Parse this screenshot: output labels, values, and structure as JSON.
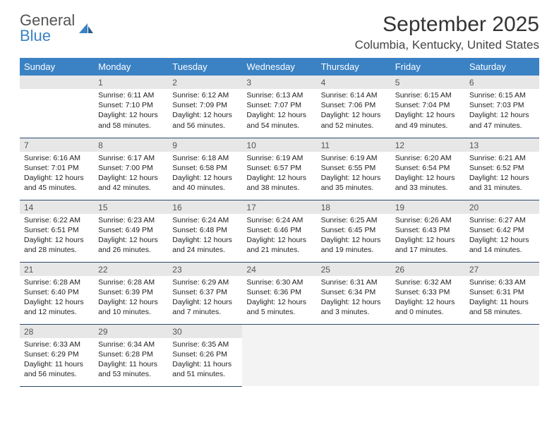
{
  "brand": {
    "word1": "General",
    "word2": "Blue"
  },
  "title": "September 2025",
  "location": "Columbia, Kentucky, United States",
  "colors": {
    "header_bg": "#3b82c4",
    "header_fg": "#ffffff",
    "daynum_bg": "#e7e7e7",
    "cell_border": "#2a4a6a",
    "empty_fill": "#f3f3f3",
    "brand_blue": "#3b82c4"
  },
  "dow": [
    "Sunday",
    "Monday",
    "Tuesday",
    "Wednesday",
    "Thursday",
    "Friday",
    "Saturday"
  ],
  "weeks": [
    [
      null,
      {
        "n": "1",
        "sun": "Sunrise: 6:11 AM",
        "set": "Sunset: 7:10 PM",
        "day": "Daylight: 12 hours and 58 minutes."
      },
      {
        "n": "2",
        "sun": "Sunrise: 6:12 AM",
        "set": "Sunset: 7:09 PM",
        "day": "Daylight: 12 hours and 56 minutes."
      },
      {
        "n": "3",
        "sun": "Sunrise: 6:13 AM",
        "set": "Sunset: 7:07 PM",
        "day": "Daylight: 12 hours and 54 minutes."
      },
      {
        "n": "4",
        "sun": "Sunrise: 6:14 AM",
        "set": "Sunset: 7:06 PM",
        "day": "Daylight: 12 hours and 52 minutes."
      },
      {
        "n": "5",
        "sun": "Sunrise: 6:15 AM",
        "set": "Sunset: 7:04 PM",
        "day": "Daylight: 12 hours and 49 minutes."
      },
      {
        "n": "6",
        "sun": "Sunrise: 6:15 AM",
        "set": "Sunset: 7:03 PM",
        "day": "Daylight: 12 hours and 47 minutes."
      }
    ],
    [
      {
        "n": "7",
        "sun": "Sunrise: 6:16 AM",
        "set": "Sunset: 7:01 PM",
        "day": "Daylight: 12 hours and 45 minutes."
      },
      {
        "n": "8",
        "sun": "Sunrise: 6:17 AM",
        "set": "Sunset: 7:00 PM",
        "day": "Daylight: 12 hours and 42 minutes."
      },
      {
        "n": "9",
        "sun": "Sunrise: 6:18 AM",
        "set": "Sunset: 6:58 PM",
        "day": "Daylight: 12 hours and 40 minutes."
      },
      {
        "n": "10",
        "sun": "Sunrise: 6:19 AM",
        "set": "Sunset: 6:57 PM",
        "day": "Daylight: 12 hours and 38 minutes."
      },
      {
        "n": "11",
        "sun": "Sunrise: 6:19 AM",
        "set": "Sunset: 6:55 PM",
        "day": "Daylight: 12 hours and 35 minutes."
      },
      {
        "n": "12",
        "sun": "Sunrise: 6:20 AM",
        "set": "Sunset: 6:54 PM",
        "day": "Daylight: 12 hours and 33 minutes."
      },
      {
        "n": "13",
        "sun": "Sunrise: 6:21 AM",
        "set": "Sunset: 6:52 PM",
        "day": "Daylight: 12 hours and 31 minutes."
      }
    ],
    [
      {
        "n": "14",
        "sun": "Sunrise: 6:22 AM",
        "set": "Sunset: 6:51 PM",
        "day": "Daylight: 12 hours and 28 minutes."
      },
      {
        "n": "15",
        "sun": "Sunrise: 6:23 AM",
        "set": "Sunset: 6:49 PM",
        "day": "Daylight: 12 hours and 26 minutes."
      },
      {
        "n": "16",
        "sun": "Sunrise: 6:24 AM",
        "set": "Sunset: 6:48 PM",
        "day": "Daylight: 12 hours and 24 minutes."
      },
      {
        "n": "17",
        "sun": "Sunrise: 6:24 AM",
        "set": "Sunset: 6:46 PM",
        "day": "Daylight: 12 hours and 21 minutes."
      },
      {
        "n": "18",
        "sun": "Sunrise: 6:25 AM",
        "set": "Sunset: 6:45 PM",
        "day": "Daylight: 12 hours and 19 minutes."
      },
      {
        "n": "19",
        "sun": "Sunrise: 6:26 AM",
        "set": "Sunset: 6:43 PM",
        "day": "Daylight: 12 hours and 17 minutes."
      },
      {
        "n": "20",
        "sun": "Sunrise: 6:27 AM",
        "set": "Sunset: 6:42 PM",
        "day": "Daylight: 12 hours and 14 minutes."
      }
    ],
    [
      {
        "n": "21",
        "sun": "Sunrise: 6:28 AM",
        "set": "Sunset: 6:40 PM",
        "day": "Daylight: 12 hours and 12 minutes."
      },
      {
        "n": "22",
        "sun": "Sunrise: 6:28 AM",
        "set": "Sunset: 6:39 PM",
        "day": "Daylight: 12 hours and 10 minutes."
      },
      {
        "n": "23",
        "sun": "Sunrise: 6:29 AM",
        "set": "Sunset: 6:37 PM",
        "day": "Daylight: 12 hours and 7 minutes."
      },
      {
        "n": "24",
        "sun": "Sunrise: 6:30 AM",
        "set": "Sunset: 6:36 PM",
        "day": "Daylight: 12 hours and 5 minutes."
      },
      {
        "n": "25",
        "sun": "Sunrise: 6:31 AM",
        "set": "Sunset: 6:34 PM",
        "day": "Daylight: 12 hours and 3 minutes."
      },
      {
        "n": "26",
        "sun": "Sunrise: 6:32 AM",
        "set": "Sunset: 6:33 PM",
        "day": "Daylight: 12 hours and 0 minutes."
      },
      {
        "n": "27",
        "sun": "Sunrise: 6:33 AM",
        "set": "Sunset: 6:31 PM",
        "day": "Daylight: 11 hours and 58 minutes."
      }
    ],
    [
      {
        "n": "28",
        "sun": "Sunrise: 6:33 AM",
        "set": "Sunset: 6:29 PM",
        "day": "Daylight: 11 hours and 56 minutes."
      },
      {
        "n": "29",
        "sun": "Sunrise: 6:34 AM",
        "set": "Sunset: 6:28 PM",
        "day": "Daylight: 11 hours and 53 minutes."
      },
      {
        "n": "30",
        "sun": "Sunrise: 6:35 AM",
        "set": "Sunset: 6:26 PM",
        "day": "Daylight: 11 hours and 51 minutes."
      },
      null,
      null,
      null,
      null
    ]
  ]
}
